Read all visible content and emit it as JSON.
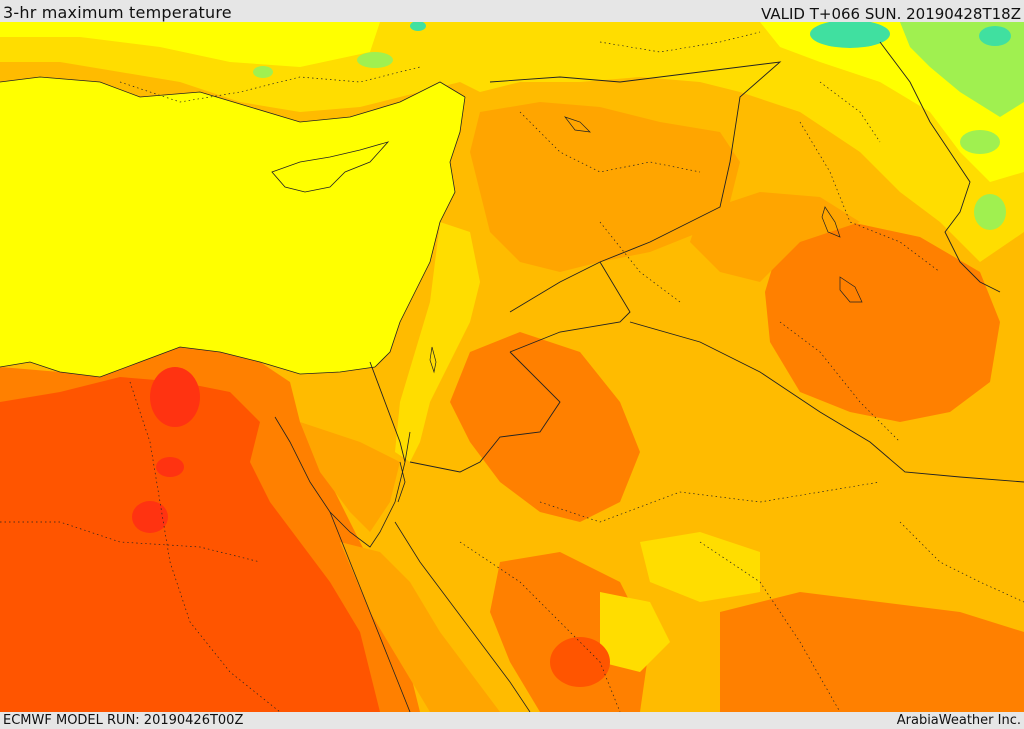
{
  "header": {
    "title": "3-hr maximum temperature",
    "valid_time": "VALID T+066 SUN. 20190428T18Z"
  },
  "footer": {
    "model_run": "ECMWF MODEL RUN: 20190426T00Z",
    "credit": "ArabiaWeather Inc."
  },
  "map": {
    "variable": "3-hr maximum temperature",
    "palette": {
      "sea": "#ffff00",
      "cool": "#ffdd00",
      "mild": "#ffbb00",
      "warm": "#ffa500",
      "hot": "#ff8000",
      "very_hot": "#ff5500",
      "hottest": "#ff3311",
      "green": "#a0f050",
      "teal": "#40e0a0"
    }
  }
}
